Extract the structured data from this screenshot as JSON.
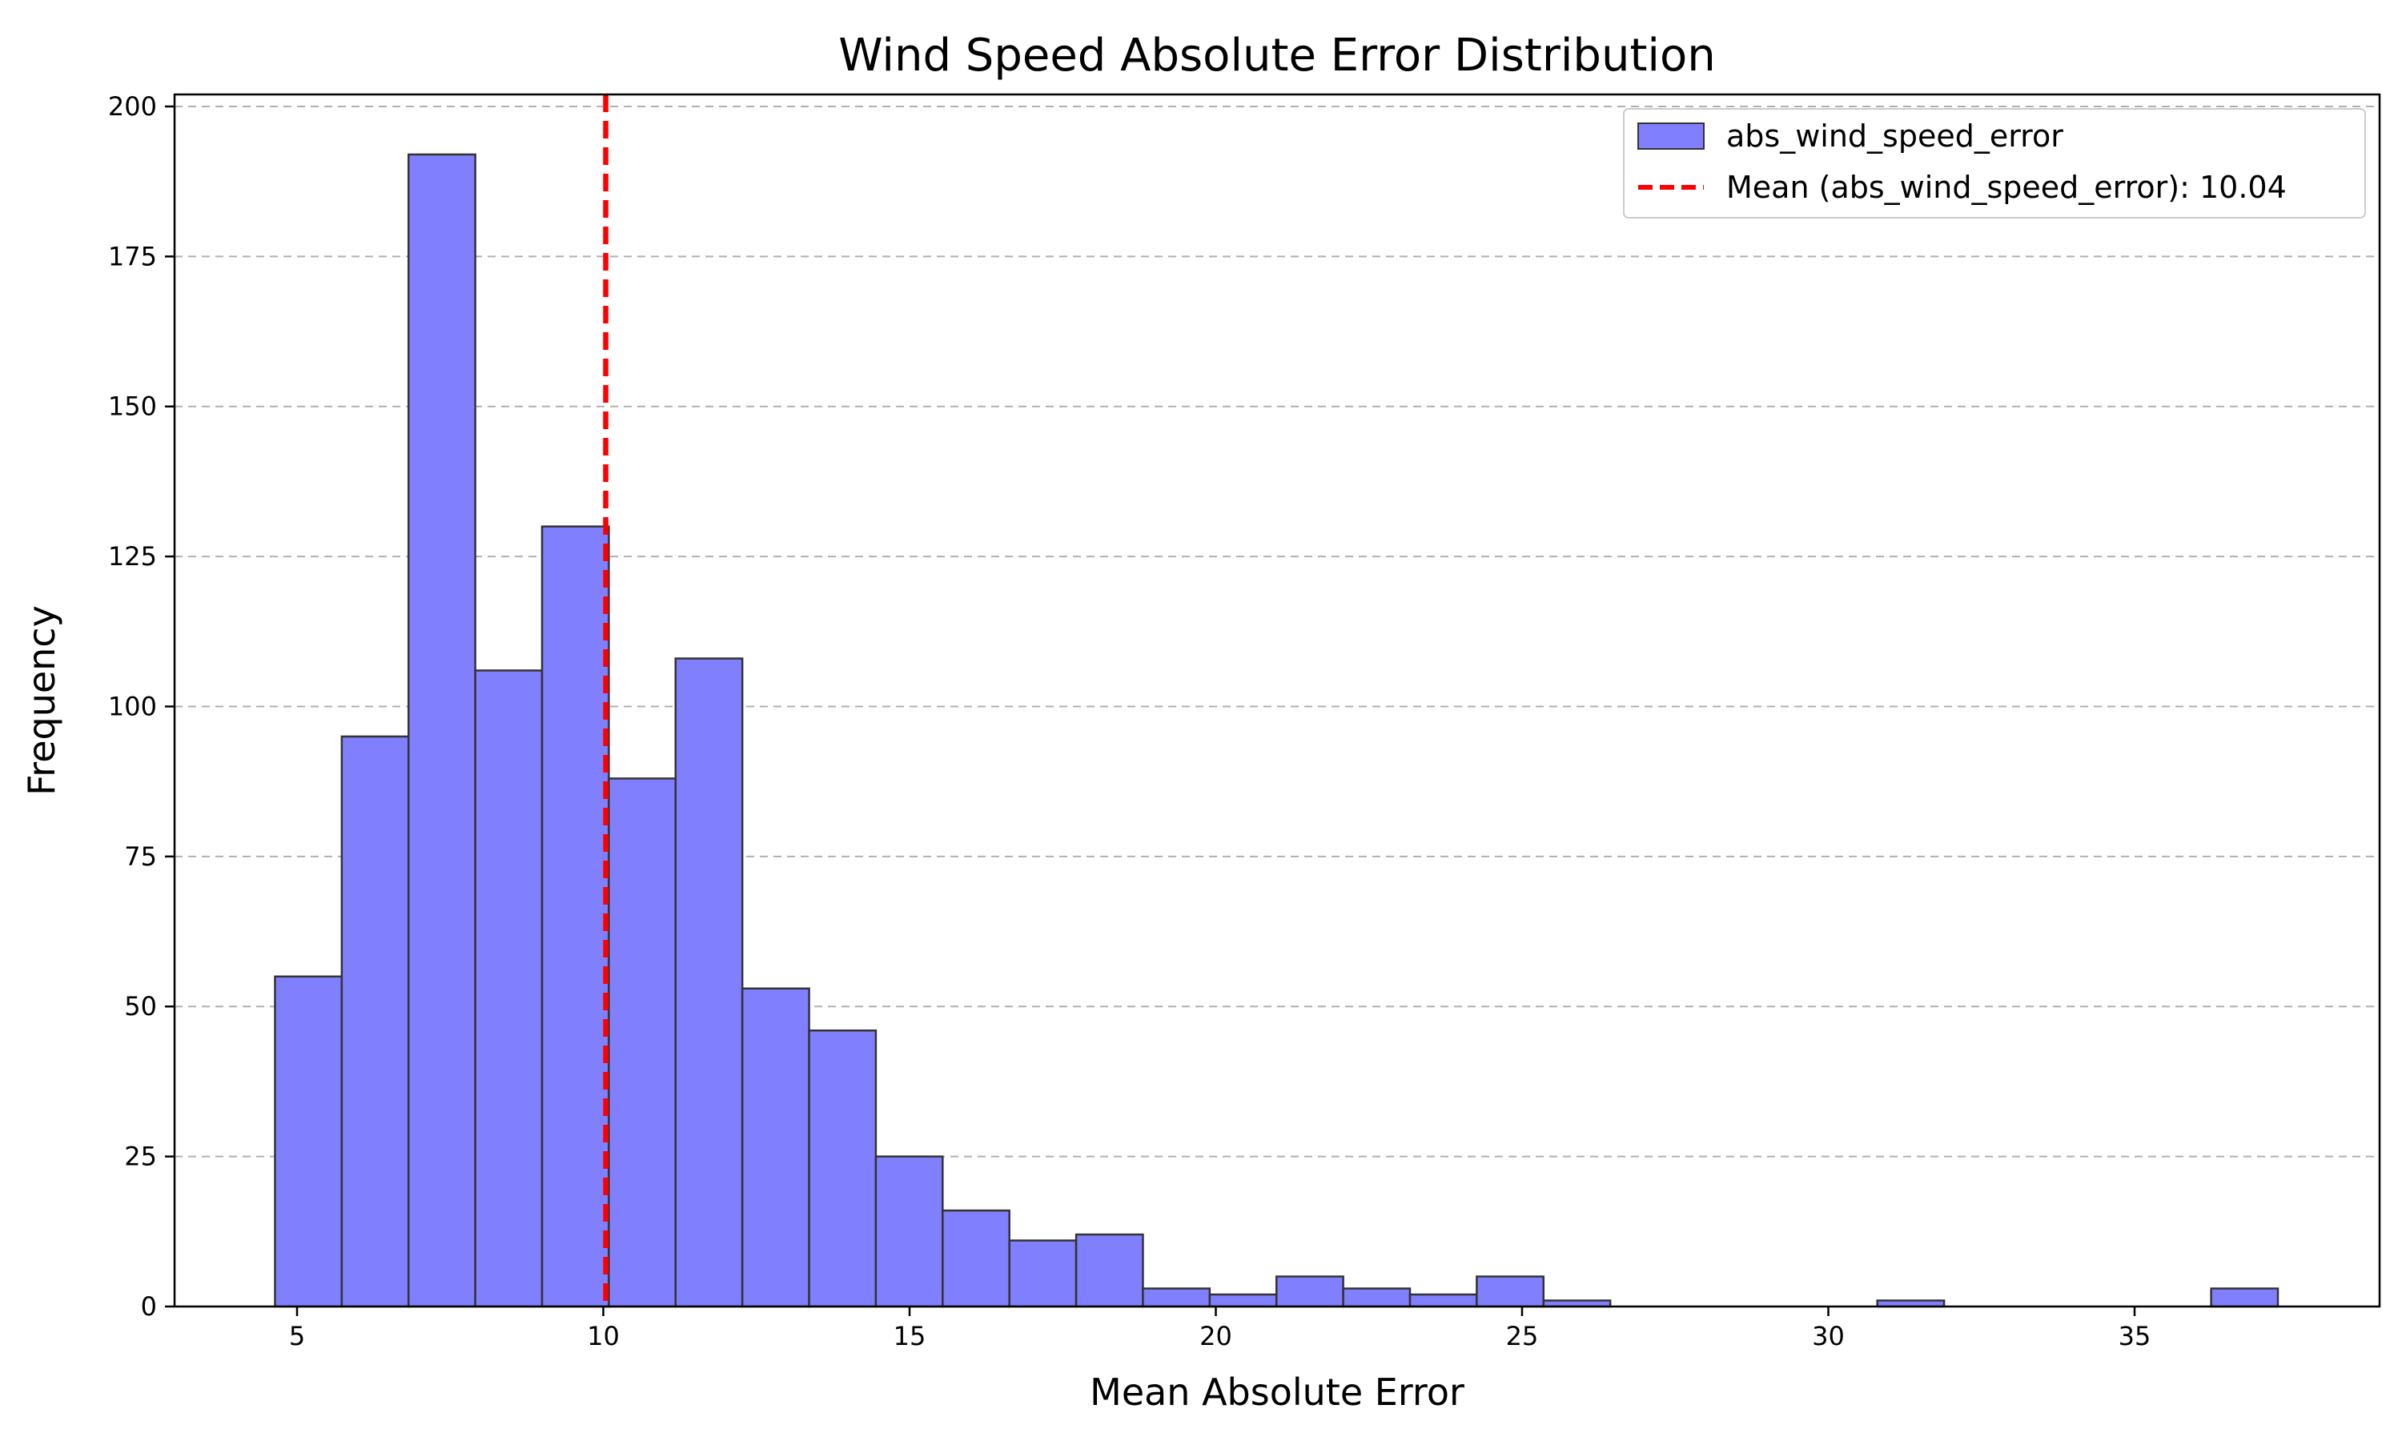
{
  "chart_data": {
    "type": "histogram",
    "title": "Wind Speed Absolute Error Distribution",
    "xlabel": "Mean Absolute Error",
    "ylabel": "Frequency",
    "xlim": [
      3,
      39
    ],
    "ylim": [
      0,
      202
    ],
    "xticks": [
      5,
      10,
      15,
      20,
      25,
      30,
      35
    ],
    "yticks": [
      0,
      25,
      50,
      75,
      100,
      125,
      150,
      175,
      200
    ],
    "grid": "y, dashed",
    "legend_position": "upper right",
    "series": [
      {
        "name": "abs_wind_speed_error",
        "color": "#8080ff",
        "edge_color": "#333333",
        "bin_edges": [
          4.64,
          5.73,
          6.82,
          7.91,
          9.0,
          10.09,
          11.18,
          12.27,
          13.36,
          14.45,
          15.54,
          16.63,
          17.72,
          18.81,
          19.9,
          20.99,
          22.08,
          23.17,
          24.26,
          25.35,
          26.44,
          27.53,
          28.62,
          29.71,
          30.8,
          31.89,
          32.98,
          34.07,
          35.16,
          36.25,
          37.34
        ],
        "counts": [
          55,
          95,
          192,
          106,
          130,
          88,
          108,
          53,
          46,
          25,
          16,
          11,
          12,
          3,
          2,
          5,
          3,
          2,
          5,
          1,
          0,
          0,
          0,
          0,
          1,
          0,
          0,
          0,
          0,
          3
        ]
      }
    ],
    "mean_line": {
      "name": "Mean (abs_wind_speed_error): 10.04",
      "value": 10.04,
      "color": "#ff0000",
      "style": "dashed"
    }
  }
}
